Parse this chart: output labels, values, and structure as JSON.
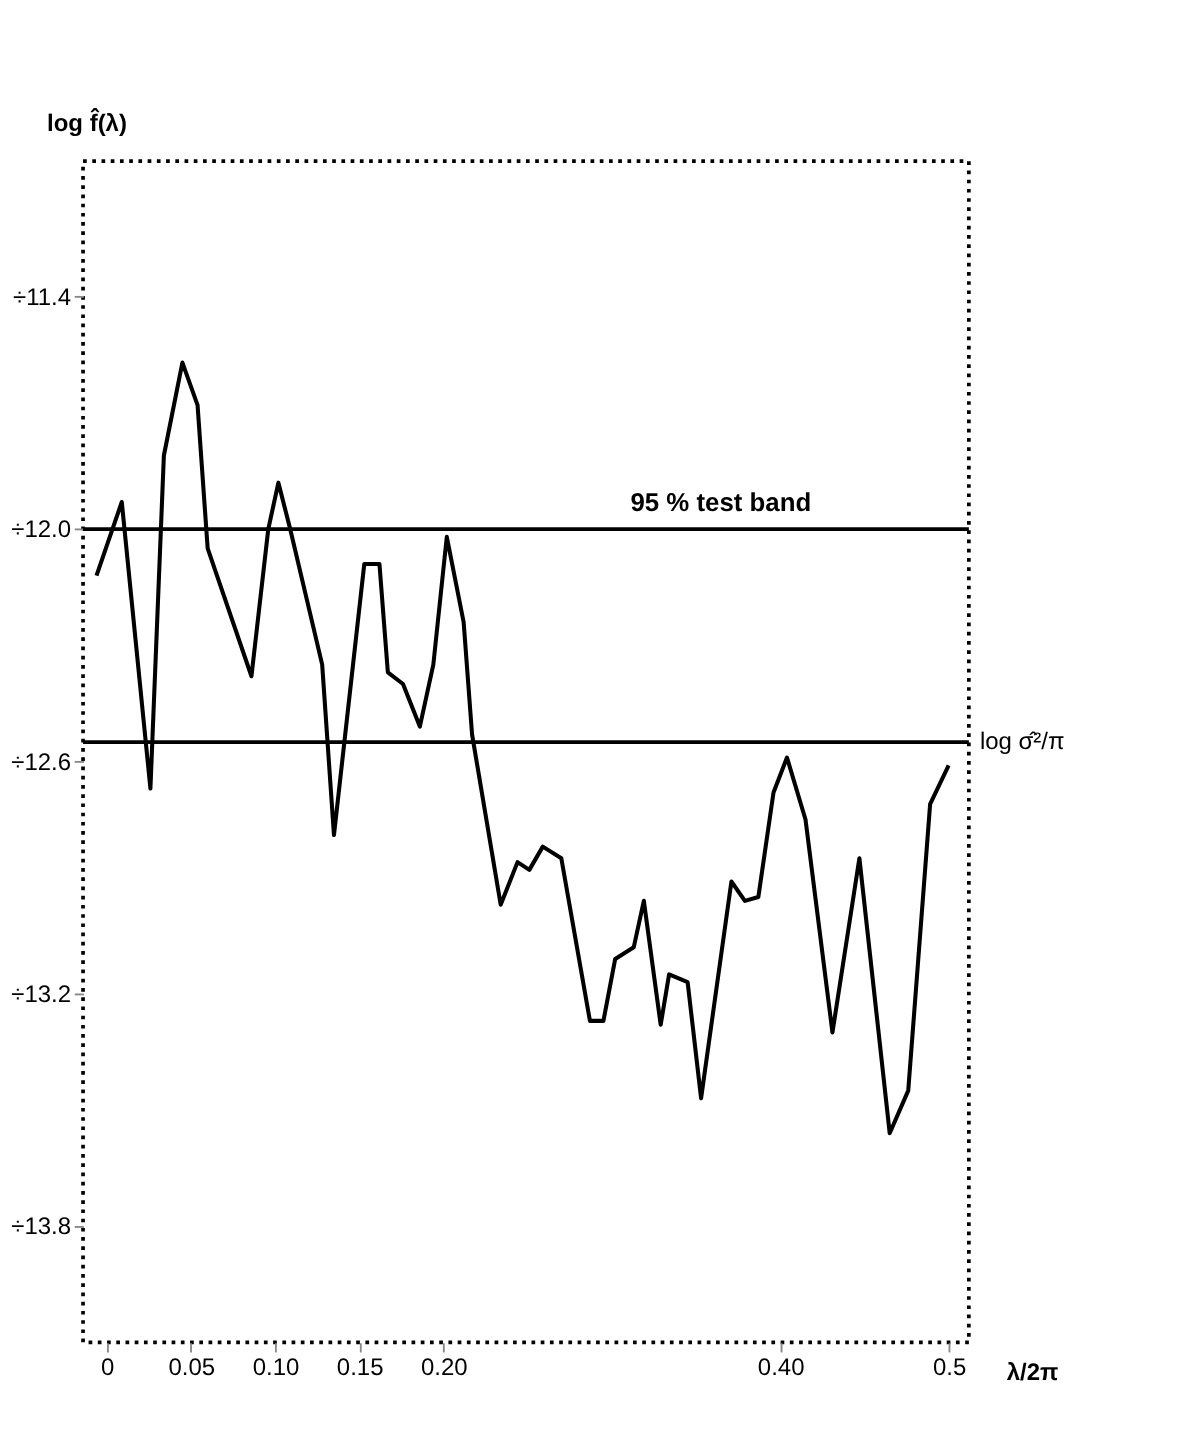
{
  "chart_data": {
    "type": "line",
    "ylabel": "log f̂(λ)",
    "xlabel": "λ/2π",
    "x": [
      -0.006,
      0.009,
      0.026,
      0.034,
      0.045,
      0.054,
      0.06,
      0.086,
      0.096,
      0.102,
      0.109,
      0.128,
      0.135,
      0.153,
      0.162,
      0.167,
      0.176,
      0.186,
      0.194,
      0.202,
      0.212,
      0.217,
      0.234,
      0.244,
      0.251,
      0.259,
      0.27,
      0.287,
      0.295,
      0.302,
      0.313,
      0.319,
      0.329,
      0.334,
      0.345,
      0.353,
      0.371,
      0.379,
      0.387,
      0.396,
      0.404,
      0.415,
      0.431,
      0.447,
      0.465,
      0.476,
      0.489,
      0.5
    ],
    "series": [
      {
        "color": "#000000",
        "values": [
          -12.12,
          -11.93,
          -12.67,
          -11.81,
          -11.57,
          -11.68,
          -12.05,
          -12.38,
          -12.0,
          -11.88,
          -12.0,
          -12.35,
          -12.79,
          -12.09,
          -12.09,
          -12.37,
          -12.4,
          -12.51,
          -12.35,
          -12.02,
          -12.24,
          -12.53,
          -12.97,
          -12.86,
          -12.88,
          -12.82,
          -12.85,
          -13.27,
          -13.27,
          -13.11,
          -13.08,
          -12.96,
          -13.28,
          -13.15,
          -13.17,
          -13.47,
          -12.91,
          -12.96,
          -12.95,
          -12.68,
          -12.59,
          -12.75,
          -13.3,
          -12.85,
          -13.56,
          -13.45,
          -12.71,
          -12.61
        ]
      }
    ],
    "xlim": [
      -0.014,
      0.512
    ],
    "xticks": [
      0,
      {
        "value": 0.05,
        "label": "0.05"
      },
      {
        "value": 0.1,
        "label": "0.10"
      },
      {
        "value": 0.15,
        "label": "0.15"
      },
      {
        "value": 0.2,
        "label": "0.20"
      },
      {
        "value": 0.4,
        "label": "0.40"
      },
      0.5
    ],
    "ylim": [
      -14.1,
      -11.05
    ],
    "yticks": [
      {
        "value": -11.4,
        "label": "÷11.4"
      },
      {
        "value": -12.0,
        "label": "÷12.0"
      },
      {
        "value": -12.6,
        "label": "÷12.6"
      },
      {
        "value": -13.2,
        "label": "÷13.2"
      },
      {
        "value": -13.8,
        "label": "÷13.8"
      }
    ],
    "ref_lines": [
      {
        "axis": "y",
        "value": -12.0,
        "label": "95 % test band",
        "color": "#000000"
      },
      {
        "axis": "y",
        "value": -12.55,
        "label": "log σ̂²/π",
        "color": "#000000"
      }
    ],
    "grid": false,
    "marker": "none",
    "line_style": "solid"
  }
}
